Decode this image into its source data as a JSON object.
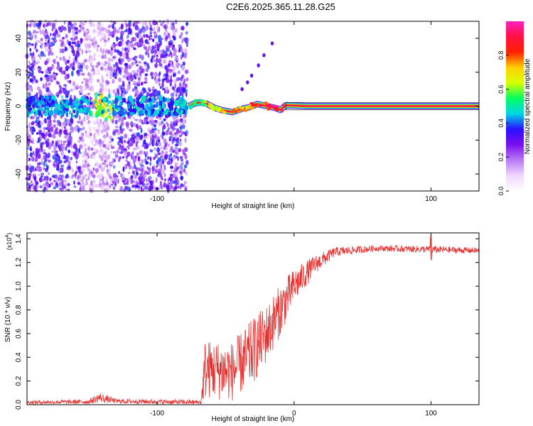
{
  "title": "C2E6.2025.365.11.28.G25",
  "chart_data": [
    {
      "type": "heatmap",
      "name": "spectrogram",
      "xlabel": "Height of straight line (km)",
      "ylabel": "Frequency (Hz)",
      "xlim": [
        -195,
        135
      ],
      "ylim": [
        -50,
        50
      ],
      "xticks": [
        -100,
        0,
        100
      ],
      "xtick_labels": [
        "-100",
        "",
        "100"
      ],
      "yticks": [
        -40,
        -20,
        0,
        20,
        40
      ],
      "ytick_labels": [
        "-40",
        "-20",
        "0",
        "20",
        "40"
      ],
      "colorbar": {
        "label": "Normalized spectral amplitude",
        "range": [
          0,
          1
        ],
        "ticks": [
          0.0,
          0.2,
          0.4,
          0.6,
          0.8
        ],
        "tick_labels": [
          "0.0",
          "0.2",
          "0.4",
          "0.6",
          "0.8"
        ],
        "colors": [
          "#ffffff",
          "#f1d6ff",
          "#b87af5",
          "#7a10f0",
          "#2a10ff",
          "#00d4e8",
          "#00ff60",
          "#d8ff00",
          "#ffd000",
          "#ff2000",
          "#ff1040",
          "#ff20c0"
        ]
      },
      "noise_region_x": [
        -195,
        -78
      ],
      "bright_noise_band_x": [
        -155,
        -133
      ],
      "ridge": [
        {
          "x": -77,
          "f": 0.0,
          "a": 0.35
        },
        {
          "x": -73,
          "f": 1.5,
          "a": 0.5
        },
        {
          "x": -69,
          "f": 2.2,
          "a": 0.55
        },
        {
          "x": -64,
          "f": 1.5,
          "a": 0.6
        },
        {
          "x": -58,
          "f": -1.0,
          "a": 0.7
        },
        {
          "x": -52,
          "f": -2.5,
          "a": 0.72
        },
        {
          "x": -45,
          "f": -3.5,
          "a": 0.75
        },
        {
          "x": -38,
          "f": -1.5,
          "a": 0.78
        },
        {
          "x": -32,
          "f": -0.5,
          "a": 0.8
        },
        {
          "x": -27,
          "f": 1.2,
          "a": 0.82
        },
        {
          "x": -21,
          "f": 0.2,
          "a": 0.85
        },
        {
          "x": -14,
          "f": -1.0,
          "a": 0.88
        },
        {
          "x": -10,
          "f": -2.2,
          "a": 0.9
        },
        {
          "x": -6,
          "f": 0.5,
          "a": 0.95
        },
        {
          "x": 10,
          "f": 0.0,
          "a": 0.98
        },
        {
          "x": 135,
          "f": 0.0,
          "a": 1.0
        }
      ],
      "spur_points": [
        {
          "x": -38,
          "f": 10
        },
        {
          "x": -34,
          "f": 14
        },
        {
          "x": -31,
          "f": 18
        },
        {
          "x": -26,
          "f": 24
        },
        {
          "x": -22,
          "f": 30
        },
        {
          "x": -16,
          "f": 37
        }
      ]
    },
    {
      "type": "line",
      "name": "snr",
      "xlabel": "Height of straight line (km)",
      "ylabel": "SNR (10 * v/v)",
      "scale_label": "(x10",
      "scale_exp": "4",
      "xlim": [
        -195,
        135
      ],
      "ylim": [
        0,
        1.45
      ],
      "xticks": [
        -100,
        0,
        100
      ],
      "xtick_labels": [
        "-100",
        "0",
        "100"
      ],
      "yticks": [
        0.0,
        0.2,
        0.4,
        0.6,
        0.8,
        1.0,
        1.2,
        1.4
      ],
      "ytick_labels": [
        "0.0",
        "0.2",
        "0.4",
        "0.6",
        "0.8",
        "1.0",
        "1.2",
        "1.4"
      ],
      "color": "#e8312f",
      "envelope": [
        {
          "x": -195,
          "y": 0.02,
          "n": 0.015
        },
        {
          "x": -150,
          "y": 0.025,
          "n": 0.02
        },
        {
          "x": -142,
          "y": 0.06,
          "n": 0.04
        },
        {
          "x": -130,
          "y": 0.03,
          "n": 0.02
        },
        {
          "x": -68,
          "y": 0.02,
          "n": 0.02
        },
        {
          "x": -65,
          "y": 0.3,
          "n": 0.25
        },
        {
          "x": -45,
          "y": 0.28,
          "n": 0.25
        },
        {
          "x": -30,
          "y": 0.45,
          "n": 0.28
        },
        {
          "x": -20,
          "y": 0.6,
          "n": 0.25
        },
        {
          "x": -10,
          "y": 0.8,
          "n": 0.22
        },
        {
          "x": 0,
          "y": 1.0,
          "n": 0.15
        },
        {
          "x": 15,
          "y": 1.18,
          "n": 0.08
        },
        {
          "x": 30,
          "y": 1.29,
          "n": 0.04
        },
        {
          "x": 60,
          "y": 1.32,
          "n": 0.025
        },
        {
          "x": 100,
          "y": 1.31,
          "n": 0.03
        },
        {
          "x": 135,
          "y": 1.3,
          "n": 0.025
        }
      ],
      "spike": {
        "x": 100,
        "y_high": 1.42,
        "y_low": 1.22
      }
    }
  ]
}
